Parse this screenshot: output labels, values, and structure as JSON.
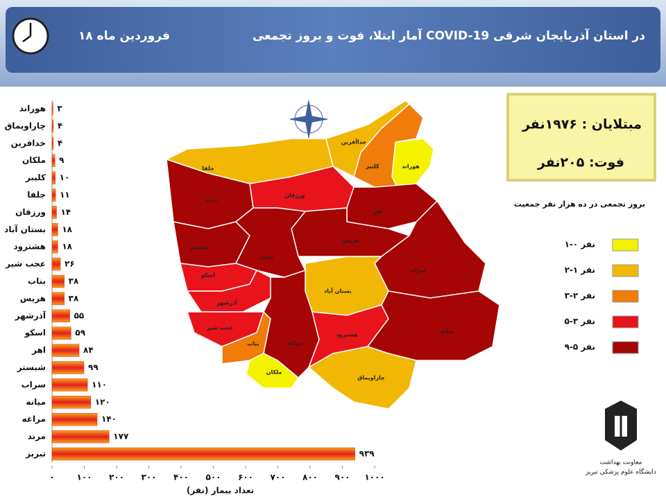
{
  "header": {
    "title": "آمار ابتلا، فوت و بروز تجمعی COVID-19 در استان آذربایجان شرقی",
    "date": "۱۸ فروردین ماه"
  },
  "chart_data": {
    "type": "bar",
    "orientation": "horizontal",
    "categories": [
      "هوراند",
      "چاراویماق",
      "خدافرین",
      "ملکان",
      "کلیبر",
      "جلفا",
      "ورزقان",
      "بستان آباد",
      "هشترود",
      "عجب شیر",
      "بناب",
      "هریس",
      "آذرشهر",
      "اسکو",
      "اهر",
      "شبستر",
      "سراب",
      "میانه",
      "مراغه",
      "مرند",
      "تبریز"
    ],
    "values": [
      3,
      4,
      4,
      9,
      10,
      11,
      14,
      18,
      18,
      26,
      38,
      38,
      55,
      59,
      84,
      99,
      110,
      120,
      140,
      177,
      939
    ],
    "value_labels": [
      "۳",
      "۴",
      "۴",
      "۹",
      "۱۰",
      "۱۱",
      "۱۴",
      "۱۸",
      "۱۸",
      "۲۶",
      "۳۸",
      "۳۸",
      "۵۵",
      "۵۹",
      "۸۴",
      "۹۹",
      "۱۱۰",
      "۱۲۰",
      "۱۴۰",
      "۱۷۷",
      "۹۳۹"
    ],
    "color": "#e8391b",
    "xlim": [
      0,
      1000
    ],
    "xticks": [
      {
        "value": 0,
        "label": "۰"
      },
      {
        "value": 100,
        "label": "۱۰۰"
      },
      {
        "value": 200,
        "label": "۲۰۰"
      },
      {
        "value": 300,
        "label": "۳۰۰"
      },
      {
        "value": 400,
        "label": "۴۰۰"
      },
      {
        "value": 500,
        "label": "۵۰۰"
      },
      {
        "value": 600,
        "label": "۶۰۰"
      },
      {
        "value": 700,
        "label": "۷۰۰"
      },
      {
        "value": 800,
        "label": "۸۰۰"
      },
      {
        "value": 900,
        "label": "۹۰۰"
      },
      {
        "value": 1000,
        "label": "۱۰۰۰"
      }
    ],
    "xlabel": "تعداد بیمار (نفر)"
  },
  "summary": {
    "infected": "مبتلایان : ۱۹۷۶نفر",
    "deaths": "فوت:  ۲۰۵نفر"
  },
  "map": {
    "title": "بروز تجمعی در ده هزار نفر جمعیت",
    "legend": [
      {
        "label": "۱-۰ نفر",
        "color": "#f5f200"
      },
      {
        "label": "۲-۱ نفر",
        "color": "#f2b705"
      },
      {
        "label": "۳-۲ نفر",
        "color": "#f07c0a"
      },
      {
        "label": "۵-۳ نفر",
        "color": "#e8131b"
      },
      {
        "label": "۹-۵ نفر",
        "color": "#a50505"
      }
    ],
    "regions": [
      {
        "label": "هوراند",
        "color": "#f5f200"
      },
      {
        "label": "کلیبر",
        "color": "#f07c0a"
      },
      {
        "label": "خداآفرین",
        "color": "#f2b705"
      },
      {
        "label": "جلفا",
        "color": "#f2b705"
      },
      {
        "label": "مرند",
        "color": "#a50505"
      },
      {
        "label": "ورزقان",
        "color": "#e8131b"
      },
      {
        "label": "اهر",
        "color": "#a50505"
      },
      {
        "label": "هریس",
        "color": "#a50505"
      },
      {
        "label": "شبستر",
        "color": "#a50505"
      },
      {
        "label": "تبریز",
        "color": "#a50505"
      },
      {
        "label": "سراب",
        "color": "#a50505"
      },
      {
        "label": "بستان آباد",
        "color": "#f2b705"
      },
      {
        "label": "اسکو",
        "color": "#e8131b"
      },
      {
        "label": "آذرشهر",
        "color": "#e8131b"
      },
      {
        "label": "عجب شیر",
        "color": "#e8131b"
      },
      {
        "label": "بناب",
        "color": "#f07c0a"
      },
      {
        "label": "مراغه",
        "color": "#a50505"
      },
      {
        "label": "هشترود",
        "color": "#e8131b"
      },
      {
        "label": "میانه",
        "color": "#a50505"
      },
      {
        "label": "ملکان",
        "color": "#f5f200"
      },
      {
        "label": "چاراویماق",
        "color": "#f2b705"
      }
    ]
  },
  "logo": {
    "line1": "معاونت بهداشت",
    "line2": "دانشگاه علوم پزشکی تبریز"
  }
}
